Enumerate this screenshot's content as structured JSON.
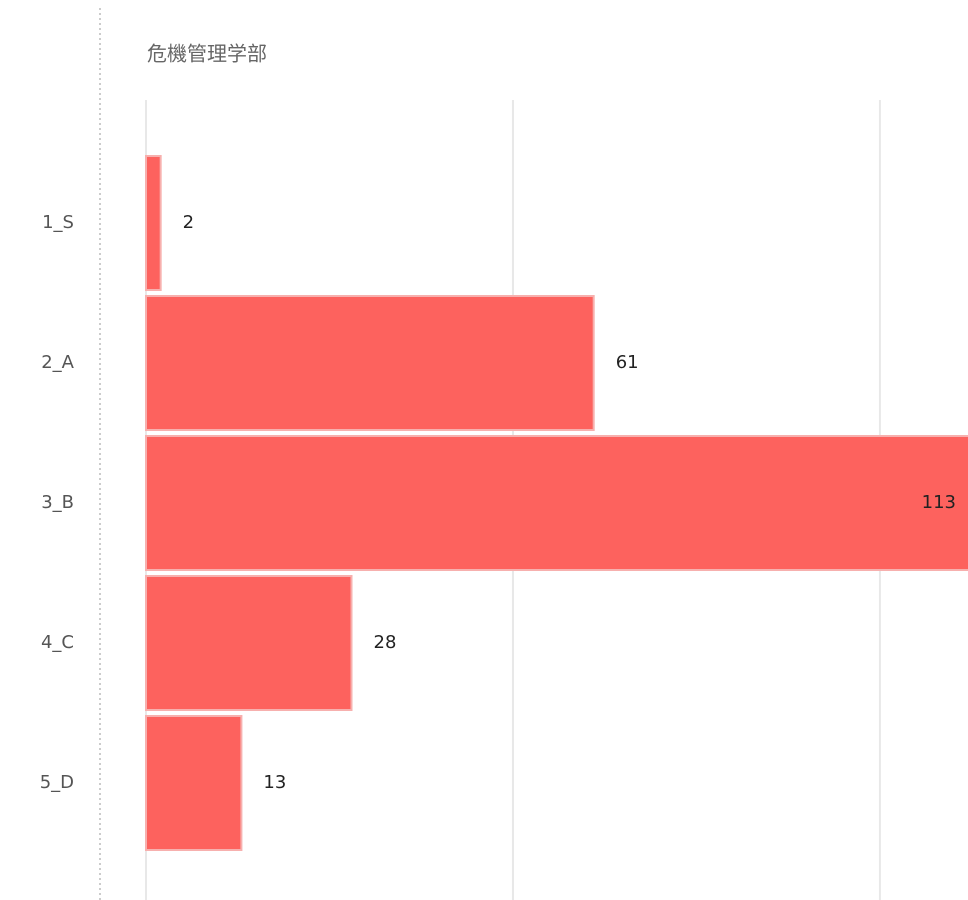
{
  "chart_data": {
    "type": "bar",
    "orientation": "horizontal",
    "title": "危機管理学部",
    "categories": [
      "1_S",
      "2_A",
      "3_B",
      "4_C",
      "5_D"
    ],
    "values": [
      2,
      61,
      113,
      28,
      13
    ],
    "color": "#fd625e",
    "xlim": [
      0,
      112
    ],
    "xticks": [
      0,
      50,
      100
    ],
    "grid": true
  }
}
